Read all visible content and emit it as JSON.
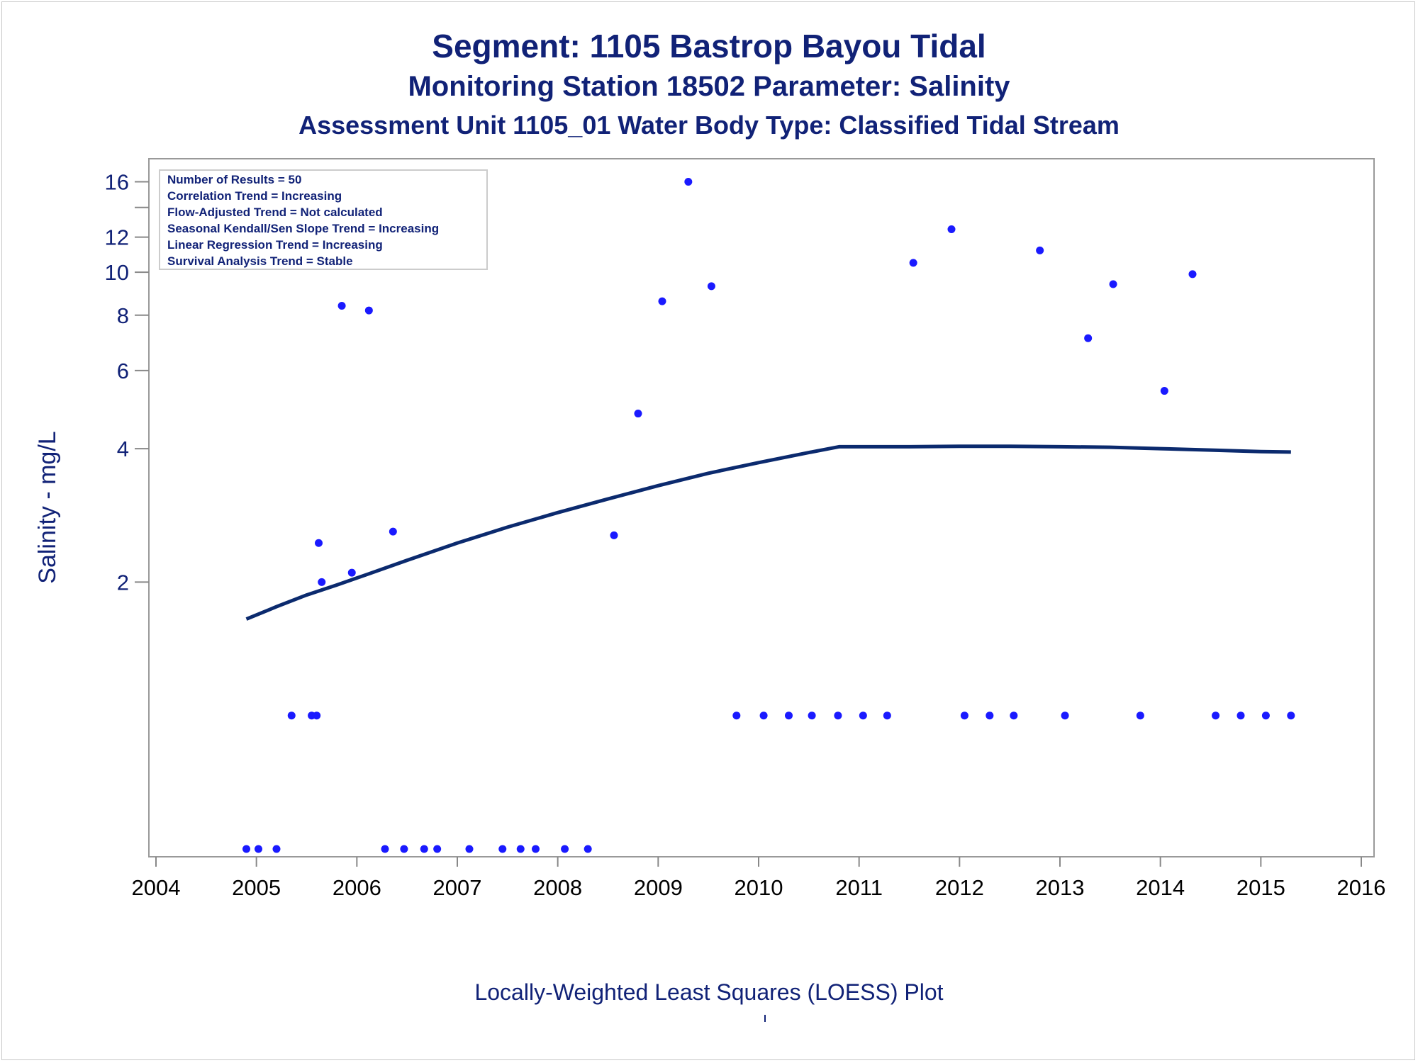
{
  "titles": {
    "line1": "Segment: 1105  Bastrop Bayou Tidal",
    "line2": "Monitoring Station 18502 Parameter: Salinity",
    "line3": "Assessment Unit 1105_01   Water Body Type: Classified Tidal Stream"
  },
  "footnote": "Locally-Weighted Least Squares (LOESS) Plot",
  "stats": [
    "Number of Results = 50",
    "Correlation Trend = Increasing",
    "Flow-Adjusted Trend = Not calculated",
    "Seasonal Kendall/Sen Slope Trend = Increasing",
    "Linear Regression Trend = Increasing",
    "Survival Analysis Trend = Stable"
  ],
  "colors": {
    "points": "#1a1aff",
    "loess": "#0b2a6e",
    "text": "#112277",
    "axis": "#888888"
  },
  "chart_data": {
    "type": "scatter",
    "ylabel": "Salinity - mg/L",
    "xlabel": "",
    "y_scale": "log",
    "xlim": [
      2004,
      2016
    ],
    "ylim": [
      0.5,
      17
    ],
    "x_ticks": [
      2004,
      2005,
      2006,
      2007,
      2008,
      2009,
      2010,
      2011,
      2012,
      2013,
      2014,
      2015,
      2016
    ],
    "y_ticks": [
      2,
      4,
      6,
      8,
      10,
      12,
      16
    ],
    "y_minor_ticks": [
      14
    ],
    "points": [
      [
        2004.9,
        0.5
      ],
      [
        2005.02,
        0.5
      ],
      [
        2005.2,
        0.5
      ],
      [
        2005.35,
        1
      ],
      [
        2005.55,
        1
      ],
      [
        2005.6,
        1
      ],
      [
        2005.62,
        2.45
      ],
      [
        2005.65,
        2.0
      ],
      [
        2005.85,
        8.4
      ],
      [
        2005.95,
        2.1
      ],
      [
        2006.12,
        8.2
      ],
      [
        2006.28,
        0.5
      ],
      [
        2006.36,
        2.6
      ],
      [
        2006.47,
        0.5
      ],
      [
        2006.67,
        0.5
      ],
      [
        2006.8,
        0.5
      ],
      [
        2007.12,
        0.5
      ],
      [
        2007.45,
        0.5
      ],
      [
        2007.63,
        0.5
      ],
      [
        2007.78,
        0.5
      ],
      [
        2008.07,
        0.5
      ],
      [
        2008.3,
        0.5
      ],
      [
        2008.56,
        2.55
      ],
      [
        2008.8,
        4.8
      ],
      [
        2009.04,
        8.6
      ],
      [
        2009.3,
        16.0
      ],
      [
        2009.53,
        9.3
      ],
      [
        2009.78,
        1
      ],
      [
        2010.05,
        1
      ],
      [
        2010.3,
        1
      ],
      [
        2010.53,
        1
      ],
      [
        2010.79,
        1
      ],
      [
        2011.04,
        1
      ],
      [
        2011.28,
        1
      ],
      [
        2011.54,
        10.5
      ],
      [
        2011.92,
        12.5
      ],
      [
        2012.05,
        1
      ],
      [
        2012.3,
        1
      ],
      [
        2012.54,
        1
      ],
      [
        2012.8,
        11.2
      ],
      [
        2013.05,
        1
      ],
      [
        2013.28,
        7.1
      ],
      [
        2013.53,
        9.4
      ],
      [
        2013.8,
        1
      ],
      [
        2014.04,
        5.4
      ],
      [
        2014.32,
        9.9
      ],
      [
        2014.55,
        1
      ],
      [
        2014.8,
        1
      ],
      [
        2015.05,
        1
      ],
      [
        2015.3,
        1
      ]
    ],
    "loess": [
      [
        2004.9,
        1.65
      ],
      [
        2005.2,
        1.76
      ],
      [
        2005.5,
        1.87
      ],
      [
        2005.8,
        1.97
      ],
      [
        2006.1,
        2.08
      ],
      [
        2006.5,
        2.24
      ],
      [
        2007.0,
        2.45
      ],
      [
        2007.5,
        2.66
      ],
      [
        2008.0,
        2.87
      ],
      [
        2008.5,
        3.08
      ],
      [
        2009.0,
        3.3
      ],
      [
        2009.5,
        3.52
      ],
      [
        2010.0,
        3.72
      ],
      [
        2010.5,
        3.92
      ],
      [
        2010.8,
        4.04
      ],
      [
        2011.5,
        4.04
      ],
      [
        2012.0,
        4.05
      ],
      [
        2012.5,
        4.05
      ],
      [
        2013.0,
        4.04
      ],
      [
        2013.5,
        4.03
      ],
      [
        2014.0,
        4.0
      ],
      [
        2014.5,
        3.97
      ],
      [
        2015.0,
        3.94
      ],
      [
        2015.3,
        3.93
      ]
    ]
  }
}
